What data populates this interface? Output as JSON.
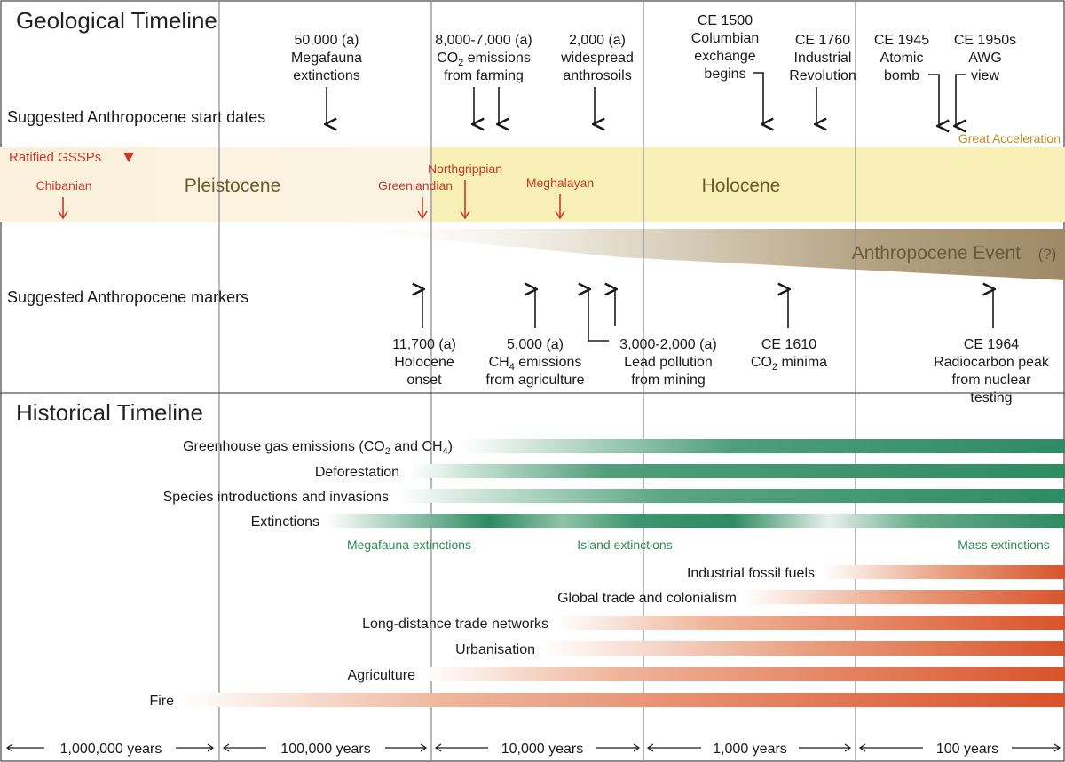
{
  "geological": {
    "title": "Geological Timeline",
    "start_dates_label": "Suggested Anthropocene start dates",
    "markers_label": "Suggested Anthropocene markers",
    "ratified_gssps_label": "Ratified GSSPs",
    "great_acceleration": "Great Acceleration",
    "epochs": {
      "pleistocene": "Pleistocene",
      "holocene": "Holocene"
    },
    "anthropocene_event": "Anthropocene Event",
    "anthropocene_question": "(?)",
    "gssps": {
      "chibanian": "Chibanian",
      "greenlandian": "Greenlandian",
      "northgrippian": "Northgrippian",
      "meghalayan": "Meghalayan"
    },
    "start_dates": {
      "megafauna": {
        "line1": "50,000 (a)",
        "line2": "Megafauna",
        "line3": "extinctions"
      },
      "farming": {
        "line1": "8,000-7,000 (a)",
        "co2_prefix": "CO",
        "co2_sub": "2",
        "co2_suffix": " emissions",
        "line3": "from farming"
      },
      "anthrosoils": {
        "line1": "2,000 (a)",
        "line2": "widespread",
        "line3": "anthrosoils"
      },
      "columbian": {
        "line1": "CE 1500",
        "line2": "Columbian",
        "line3": "exchange",
        "line4": "begins"
      },
      "industrial": {
        "line1": "CE 1760",
        "line2": "Industrial",
        "line3": "Revolution"
      },
      "atomic": {
        "line1": "CE 1945",
        "line2": "Atomic",
        "line3": "bomb"
      },
      "awg": {
        "line1": "CE 1950s",
        "line2": "AWG",
        "line3": "view"
      }
    },
    "markers": {
      "holocene_onset": {
        "line1": "11,700 (a)",
        "line2": "Holocene",
        "line3": "onset"
      },
      "ch4_agriculture": {
        "line1": "5,000 (a)",
        "ch4_prefix": "CH",
        "ch4_sub": "4",
        "ch4_suffix": " emissions",
        "line3": "from agriculture"
      },
      "lead": {
        "line1": "3,000-2,000 (a)",
        "line2": "Lead pollution",
        "line3": "from mining"
      },
      "co2_minima": {
        "line1": "CE 1610",
        "co2_prefix": "CO",
        "co2_sub": "2",
        "co2_suffix": " minima"
      },
      "radiocarbon": {
        "line1": "CE 1964",
        "line2": "Radiocarbon peak",
        "line3": "from nuclear",
        "line4": "testing"
      }
    }
  },
  "historical": {
    "title": "Historical Timeline",
    "ghg": {
      "prefix": "Greenhouse gas emissions (CO",
      "sub1": "2",
      "mid": " and CH",
      "sub2": "4",
      "suffix": ")"
    },
    "deforestation": "Deforestation",
    "species": "Species introductions and invasions",
    "extinctions": "Extinctions",
    "megafauna_ext": "Megafauna extinctions",
    "island_ext": "Island extinctions",
    "mass_ext": "Mass extinctions",
    "fossil": "Industrial fossil fuels",
    "trade": "Global trade and colonialism",
    "longdistance": "Long-distance trade networks",
    "urban": "Urbanisation",
    "agriculture": "Agriculture",
    "fire": "Fire"
  },
  "scale": [
    "1,000,000 years",
    "100,000 years",
    "10,000 years",
    "1,000 years",
    "100 years"
  ],
  "colors": {
    "green": "#2e8b57",
    "orange": "#d9532a",
    "gssp_red": "#c8392b",
    "holocene": "#f8f0b6",
    "pleistocene": "#fbf3df",
    "anthropocene": "#9e8a67"
  }
}
